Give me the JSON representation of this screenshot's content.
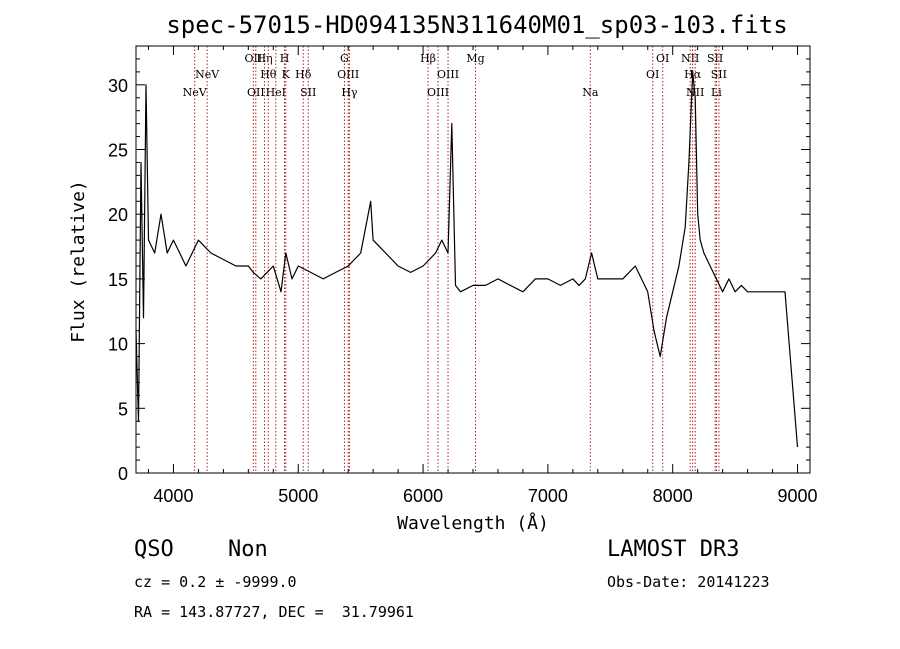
{
  "chart_data": {
    "type": "line",
    "title": "spec-57015-HD094135N311640M01_sp03-103.fits",
    "xlabel": "Wavelength (Å)",
    "ylabel": "Flux (relative)",
    "xlim": [
      3700,
      9100
    ],
    "ylim": [
      0,
      33
    ],
    "xticks": [
      4000,
      5000,
      6000,
      7000,
      8000,
      9000
    ],
    "yticks": [
      0,
      5,
      10,
      15,
      20,
      25,
      30
    ],
    "line_color": "#000000",
    "marker_color": "#b22222",
    "spectrum": {
      "x": [
        3700,
        3720,
        3740,
        3760,
        3780,
        3800,
        3850,
        3900,
        3950,
        4000,
        4050,
        4100,
        4150,
        4200,
        4300,
        4400,
        4500,
        4600,
        4640,
        4700,
        4800,
        4862,
        4900,
        4950,
        5000,
        5100,
        5200,
        5300,
        5400,
        5500,
        5580,
        5600,
        5700,
        5800,
        5900,
        6000,
        6100,
        6150,
        6200,
        6230,
        6260,
        6300,
        6400,
        6500,
        6600,
        6700,
        6800,
        6900,
        7000,
        7100,
        7200,
        7250,
        7300,
        7350,
        7400,
        7500,
        7600,
        7700,
        7800,
        7850,
        7900,
        7950,
        8000,
        8050,
        8100,
        8130,
        8160,
        8180,
        8200,
        8220,
        8250,
        8300,
        8350,
        8400,
        8450,
        8500,
        8550,
        8600,
        8700,
        8800,
        8900,
        9000
      ],
      "y": [
        11,
        4,
        24,
        12,
        30,
        18,
        17,
        20,
        17,
        18,
        17,
        16,
        17,
        18,
        17,
        16.5,
        16,
        16,
        15.5,
        15,
        16,
        14,
        17,
        15,
        16,
        15.5,
        15,
        15.5,
        16,
        17,
        21,
        18,
        17,
        16,
        15.5,
        16,
        17,
        18,
        17,
        27,
        14.5,
        14,
        14.5,
        14.5,
        15,
        14.5,
        14,
        15,
        15,
        14.5,
        15,
        14.5,
        15,
        17,
        15,
        15,
        15,
        16,
        14,
        11,
        9,
        12,
        14,
        16,
        19,
        24,
        31,
        29,
        20,
        18,
        17,
        16,
        15,
        14,
        15,
        14,
        14.5,
        14,
        14,
        14,
        14,
        2
      ]
    },
    "lines": [
      {
        "label": "NeV",
        "x": 4170,
        "row": 2
      },
      {
        "label": "NeV",
        "x": 4270,
        "row": 1
      },
      {
        "label": "OII",
        "x": 4640,
        "row": 0
      },
      {
        "label": "OII",
        "x": 4660,
        "row": 2
      },
      {
        "label": "Hη",
        "x": 4730,
        "row": 0
      },
      {
        "label": "Hθ",
        "x": 4760,
        "row": 1
      },
      {
        "label": "HeI",
        "x": 4820,
        "row": 2
      },
      {
        "label": "H",
        "x": 4890,
        "row": 0
      },
      {
        "label": "K",
        "x": 4900,
        "row": 1
      },
      {
        "label": "Hδ",
        "x": 5040,
        "row": 1
      },
      {
        "label": "SII",
        "x": 5080,
        "row": 2
      },
      {
        "label": "G",
        "x": 5370,
        "row": 0
      },
      {
        "label": "OIII",
        "x": 5400,
        "row": 1
      },
      {
        "label": "Hγ",
        "x": 5410,
        "row": 2
      },
      {
        "label": "Hβ",
        "x": 6040,
        "row": 0
      },
      {
        "label": "OIII",
        "x": 6120,
        "row": 2
      },
      {
        "label": "OIII",
        "x": 6200,
        "row": 1
      },
      {
        "label": "Mg",
        "x": 6420,
        "row": 0
      },
      {
        "label": "Na",
        "x": 7340,
        "row": 2
      },
      {
        "label": "OI",
        "x": 7840,
        "row": 1
      },
      {
        "label": "OI",
        "x": 7920,
        "row": 0
      },
      {
        "label": "NII",
        "x": 8140,
        "row": 0
      },
      {
        "label": "Hα",
        "x": 8160,
        "row": 1
      },
      {
        "label": "NII",
        "x": 8180,
        "row": 2
      },
      {
        "label": "SII",
        "x": 8340,
        "row": 0
      },
      {
        "label": "Li",
        "x": 8350,
        "row": 2
      },
      {
        "label": "SII",
        "x": 8370,
        "row": 1
      }
    ]
  },
  "info": {
    "class": "QSO",
    "subclass": "Non",
    "survey": "LAMOST DR3",
    "cz": "cz = 0.2 ± -9999.0",
    "obs_date": "Obs-Date: 20141223",
    "radec": "RA = 143.87727, DEC =  31.79961"
  }
}
